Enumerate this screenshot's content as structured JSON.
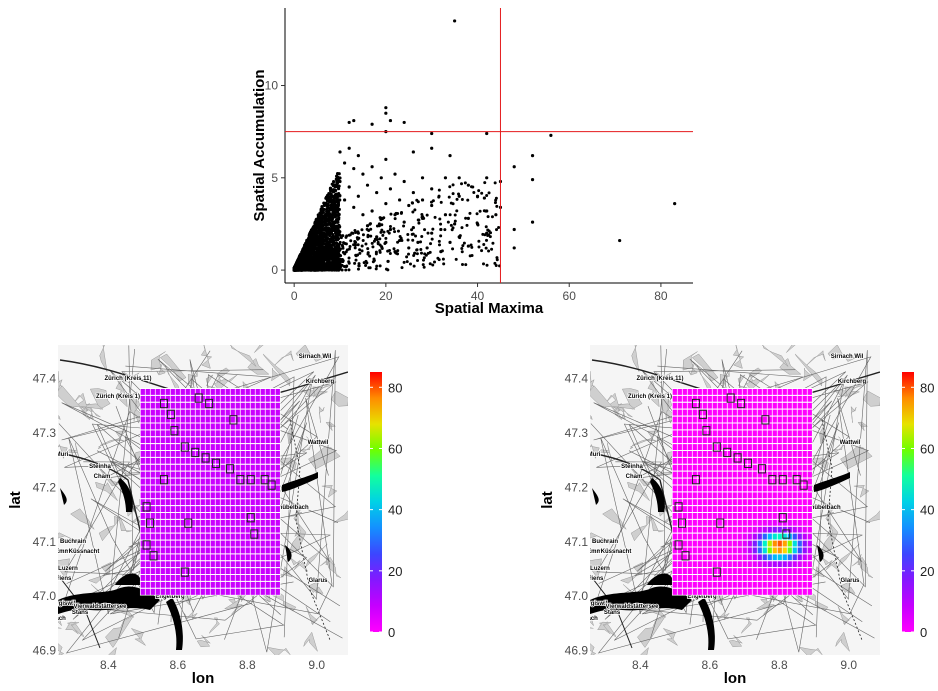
{
  "chart_data": [
    {
      "type": "scatter",
      "xlabel": "Spatial Maxima",
      "ylabel": "Spatial Accumulation",
      "xlim": [
        -2,
        87
      ],
      "ylim": [
        -0.7,
        14.2
      ],
      "xticks": [
        0,
        20,
        40,
        60,
        80
      ],
      "yticks": [
        0,
        5,
        10
      ],
      "threshold_lines": {
        "x": 45,
        "y": 7.5,
        "color": "#e41a1c"
      },
      "dense_cluster": {
        "description_free": true
      },
      "points": [
        [
          35,
          13.5
        ],
        [
          20,
          8.8
        ],
        [
          20,
          8.5
        ],
        [
          21,
          8.1
        ],
        [
          17,
          7.9
        ],
        [
          24,
          8.0
        ],
        [
          13,
          8.1
        ],
        [
          12,
          8.0
        ],
        [
          42,
          7.4
        ],
        [
          56,
          7.3
        ],
        [
          30,
          7.4
        ],
        [
          20,
          7.5
        ],
        [
          45,
          4.8
        ],
        [
          48,
          5.6
        ],
        [
          52,
          6.2
        ],
        [
          52,
          4.9
        ],
        [
          45,
          3.4
        ],
        [
          83,
          3.6
        ],
        [
          48,
          2.2
        ],
        [
          52,
          2.6
        ],
        [
          71,
          1.6
        ],
        [
          48,
          1.2
        ],
        [
          42,
          3.2
        ],
        [
          42,
          2.0
        ],
        [
          40,
          2.5
        ],
        [
          38,
          2.8
        ],
        [
          38,
          1.3
        ],
        [
          36,
          4.0
        ],
        [
          36,
          1.8
        ],
        [
          35,
          2.5
        ],
        [
          34,
          1.5
        ],
        [
          33,
          5.0
        ],
        [
          33,
          3.0
        ],
        [
          32,
          2.2
        ],
        [
          32,
          1.0
        ],
        [
          30,
          4.4
        ],
        [
          30,
          3.5
        ],
        [
          30,
          2.0
        ],
        [
          29,
          1.2
        ],
        [
          28,
          5.0
        ],
        [
          28,
          3.8
        ],
        [
          28,
          2.8
        ],
        [
          27,
          1.5
        ],
        [
          26,
          4.2
        ],
        [
          26,
          2.3
        ],
        [
          25,
          3.5
        ],
        [
          25,
          1.2
        ],
        [
          24,
          4.8
        ],
        [
          24,
          2.6
        ],
        [
          23,
          3.8
        ],
        [
          23,
          1.6
        ],
        [
          22,
          5.2
        ],
        [
          22,
          3.0
        ],
        [
          22,
          1.0
        ],
        [
          21,
          4.4
        ],
        [
          21,
          2.2
        ],
        [
          20,
          6.0
        ],
        [
          20,
          3.6
        ],
        [
          20,
          1.5
        ],
        [
          19,
          5.0
        ],
        [
          19,
          2.8
        ],
        [
          18,
          4.2
        ],
        [
          18,
          1.8
        ],
        [
          17,
          5.6
        ],
        [
          17,
          3.2
        ],
        [
          16,
          4.6
        ],
        [
          16,
          2.4
        ],
        [
          15,
          5.2
        ],
        [
          15,
          3.0
        ],
        [
          14,
          6.2
        ],
        [
          14,
          4.0
        ],
        [
          14,
          2.0
        ],
        [
          13,
          5.5
        ],
        [
          13,
          3.4
        ],
        [
          12,
          6.6
        ],
        [
          12,
          4.5
        ],
        [
          11,
          5.8
        ],
        [
          11,
          3.8
        ],
        [
          10,
          6.4
        ],
        [
          10,
          4.8
        ],
        [
          34,
          6.2
        ],
        [
          36,
          5.0
        ],
        [
          26,
          6.4
        ],
        [
          30,
          6.6
        ],
        [
          38,
          4.6
        ],
        [
          40,
          4.0
        ],
        [
          44,
          3.0
        ],
        [
          42,
          5.0
        ]
      ]
    },
    {
      "type": "heatmap",
      "xlabel": "lon",
      "ylabel": "lat",
      "xticks": [
        "8.4",
        "8.6",
        "8.8",
        "9.0"
      ],
      "yticks": [
        "46.9",
        "47.0",
        "47.1",
        "47.2",
        "47.3",
        "47.4"
      ],
      "colorbar": {
        "min": 0,
        "max": 85,
        "ticks": [
          0,
          20,
          40,
          60,
          80
        ]
      },
      "uniform_value": 8,
      "hotspot": null
    },
    {
      "type": "heatmap",
      "xlabel": "lon",
      "ylabel": "lat",
      "xticks": [
        "8.4",
        "8.6",
        "8.8",
        "9.0"
      ],
      "yticks": [
        "46.9",
        "47.0",
        "47.1",
        "47.2",
        "47.3",
        "47.4"
      ],
      "colorbar": {
        "min": 0,
        "max": 85,
        "ticks": [
          0,
          20,
          40,
          60,
          80
        ]
      },
      "uniform_value": 0,
      "hotspot": {
        "lon": 8.8,
        "lat": 47.09,
        "peak": 84
      }
    }
  ],
  "map_labels": [
    {
      "text": "Sirnach Wil"
    },
    {
      "text": "Zürich (Kreis 11)"
    },
    {
      "text": "Kirchberg"
    },
    {
      "text": "Zürich (Kreis 1)"
    },
    {
      "text": "Wattwil"
    },
    {
      "text": "Muri"
    },
    {
      "text": "Steinha"
    },
    {
      "text": "Cham"
    },
    {
      "text": "Schübelbach"
    },
    {
      "text": "Buchrain"
    },
    {
      "text": "Emmen"
    },
    {
      "text": "Küssnacht"
    },
    {
      "text": "Luzern"
    },
    {
      "text": "Kriens"
    },
    {
      "text": "Glarus"
    },
    {
      "text": "Hergiswil"
    },
    {
      "text": "Stans"
    },
    {
      "text": "Vierwaldstättersee"
    },
    {
      "text": "Engelberg"
    },
    {
      "text": "Ibach"
    }
  ]
}
